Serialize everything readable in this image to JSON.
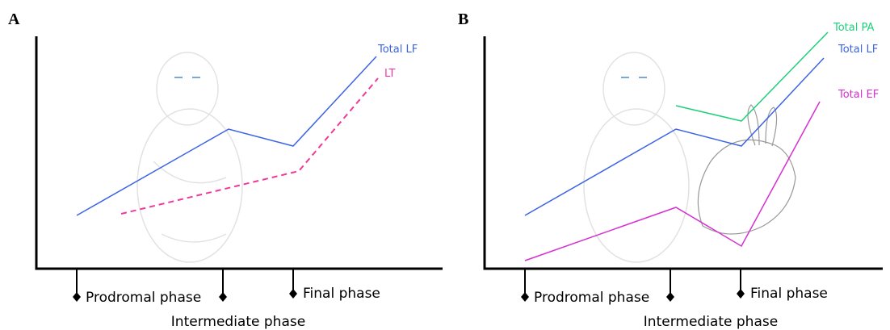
{
  "panels": [
    {
      "label": "A",
      "lines": [
        "Total LF",
        "LT"
      ],
      "phases": [
        "Prodromal phase",
        "Final phase",
        "Intermediate phase"
      ]
    },
    {
      "label": "B",
      "lines": [
        "Total PA",
        "Total LF",
        "Total EF"
      ],
      "phases": [
        "Prodromal phase",
        "Final phase",
        "Intermediate phase"
      ]
    }
  ]
}
